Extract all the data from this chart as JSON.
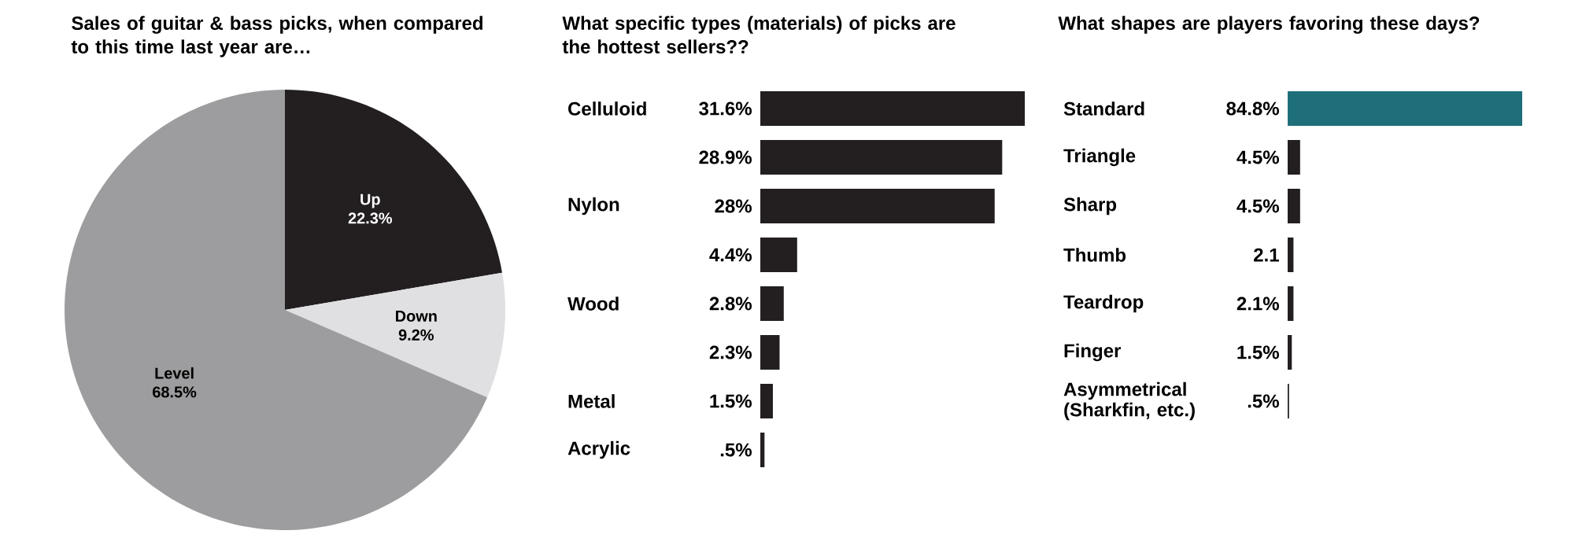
{
  "chart_data": [
    {
      "type": "pie",
      "title": "Sales of guitar & bass picks, when compared to this time last year are…",
      "categories": [
        "Up",
        "Down",
        "Level"
      ],
      "values": [
        22.3,
        9.2,
        68.5
      ],
      "value_labels": [
        "22.3%",
        "9.2%",
        "68.5%"
      ],
      "colors": [
        "#231f20",
        "#e0e0e2",
        "#9d9d9f"
      ]
    },
    {
      "type": "bar",
      "orientation": "horizontal",
      "title": "What specific types (materials) of picks are the hottest sellers??",
      "categories": [
        "Celluloid",
        null,
        "Nylon",
        null,
        "Wood",
        null,
        "Metal",
        "Acrylic"
      ],
      "values": [
        31.6,
        28.9,
        28,
        4.4,
        2.8,
        2.3,
        1.5,
        0.5
      ],
      "value_labels": [
        "31.6%",
        "28.9%",
        "28%",
        "4.4%",
        "2.8%",
        "2.3%",
        "1.5%",
        ".5%"
      ],
      "color": "#231f20"
    },
    {
      "type": "bar",
      "orientation": "horizontal",
      "title": "What shapes are players favoring these days?",
      "categories": [
        "Standard",
        "Triangle",
        "Sharp",
        "Thumb",
        "Teardrop",
        "Finger",
        "Asymmetrical (Sharkfin, etc.)"
      ],
      "values": [
        84.8,
        4.5,
        4.5,
        2.1,
        2.1,
        1.5,
        0.5
      ],
      "value_labels": [
        "84.8%",
        "4.5%",
        "4.5%",
        "2.1",
        "2.1%",
        "1.5%",
        ".5%"
      ],
      "colors": [
        "#1f6f7a",
        "#231f20",
        "#231f20",
        "#231f20",
        "#231f20",
        "#231f20",
        "#231f20"
      ]
    }
  ]
}
